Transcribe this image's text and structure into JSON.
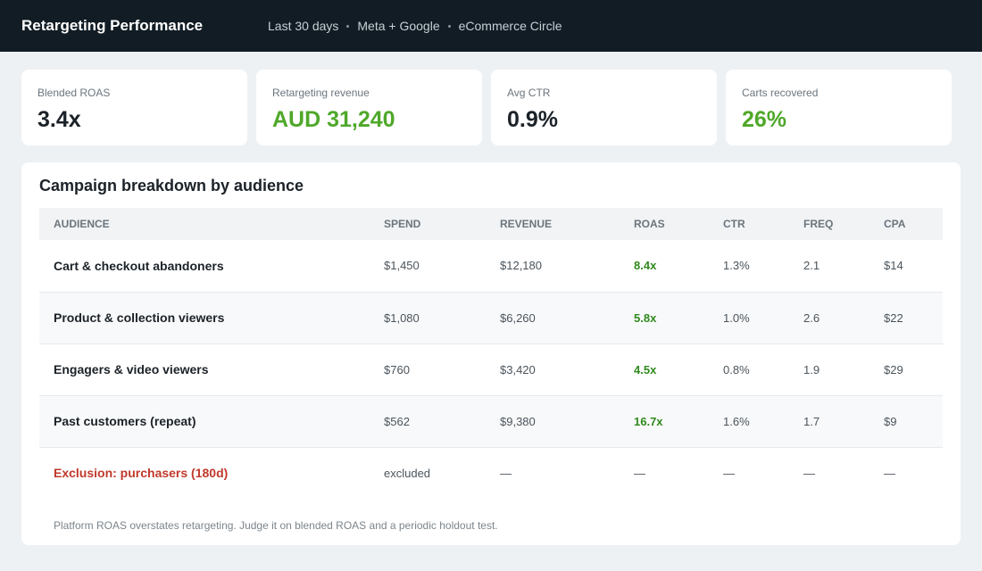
{
  "header": {
    "title": "Retargeting Performance",
    "meta": [
      "Last 30 days",
      "Meta + Google",
      "eCommerce Circle"
    ]
  },
  "kpis": [
    {
      "label": "Blended ROAS",
      "value": "3.4x"
    },
    {
      "label": "Retargeting revenue",
      "value": "AUD 31,240"
    },
    {
      "label": "Avg CTR",
      "value": "0.9%"
    },
    {
      "label": "Carts recovered",
      "value": "26%"
    }
  ],
  "table": {
    "title": "Campaign breakdown by audience",
    "columns": [
      "AUDIENCE",
      "SPEND",
      "REVENUE",
      "ROAS",
      "CTR",
      "FREQ",
      "CPA"
    ],
    "rows": [
      [
        "Cart & checkout abandoners",
        "$1,450",
        "$12,180",
        "8.4x",
        "1.3%",
        "2.1",
        "$14"
      ],
      [
        "Product & collection viewers",
        "$1,080",
        "$6,260",
        "5.8x",
        "1.0%",
        "2.6",
        "$22"
      ],
      [
        "Engagers & video viewers",
        "$760",
        "$3,420",
        "4.5x",
        "0.8%",
        "1.9",
        "$29"
      ],
      [
        "Past customers (repeat)",
        "$562",
        "$9,380",
        "16.7x",
        "1.6%",
        "1.7",
        "$9"
      ],
      [
        "Exclusion: purchasers (180d)",
        "excluded",
        "—",
        "—",
        "—",
        "—",
        "—"
      ]
    ],
    "footnote": "Platform ROAS overstates retargeting. Judge it on blended ROAS and a periodic holdout test."
  }
}
